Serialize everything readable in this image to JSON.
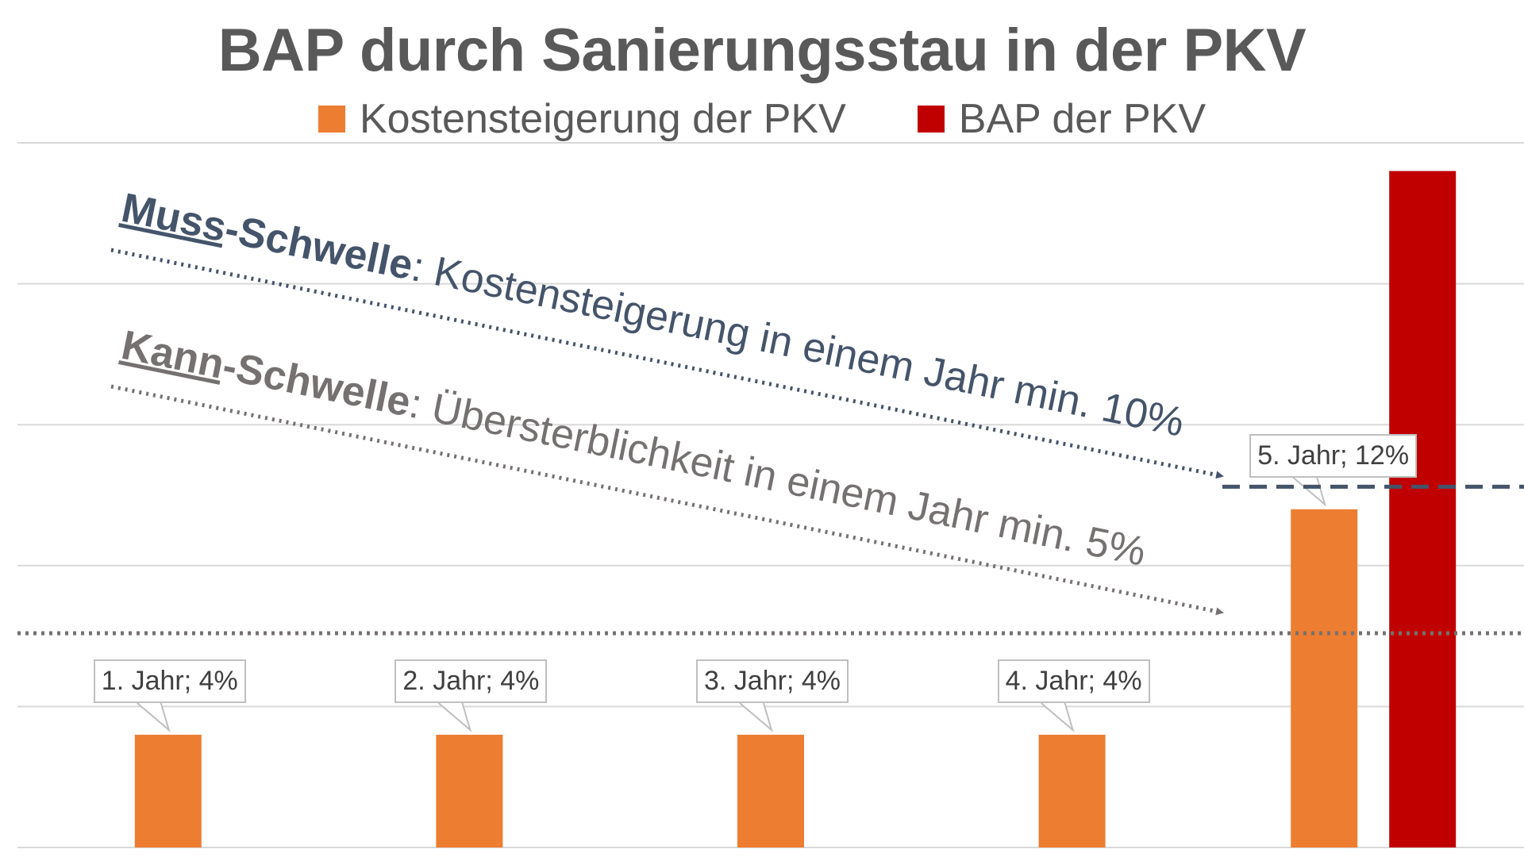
{
  "chart_data": {
    "type": "bar",
    "title": "BAP durch Sanierungsstau in der PKV",
    "categories": [
      "1. Jahr",
      "2. Jahr",
      "3. Jahr",
      "4. Jahr",
      "5. Jahr"
    ],
    "series": [
      {
        "name": "Kostensteigerung der PKV",
        "color": "#ed7d31",
        "values": [
          4,
          4,
          4,
          4,
          12
        ]
      },
      {
        "name": "BAP der PKV",
        "color": "#c00000",
        "values": [
          null,
          null,
          null,
          null,
          24
        ]
      }
    ],
    "data_labels": [
      "1. Jahr; 4%",
      "2. Jahr; 4%",
      "3. Jahr; 4%",
      "4. Jahr; 4%",
      "5. Jahr; 12%"
    ],
    "ylim": [
      0,
      25
    ],
    "gridlines": true,
    "legend_position": "top",
    "thresholds": [
      {
        "value": 12.8,
        "style": "dashed",
        "color": "#44546a"
      },
      {
        "value": 7.6,
        "style": "dotted",
        "color": "#767171"
      }
    ],
    "annotations": {
      "muss": {
        "key_underlined": "Muss",
        "key_rest": "-Schwelle",
        "text": ": Kostensteigerung in einem Jahr min. 10%",
        "color": "#44546a"
      },
      "kann": {
        "key_underlined": "Kann",
        "key_rest": "-Schwelle",
        "text": ": Übersterblichkeit in einem Jahr min. 5%",
        "color": "#767171"
      }
    }
  }
}
